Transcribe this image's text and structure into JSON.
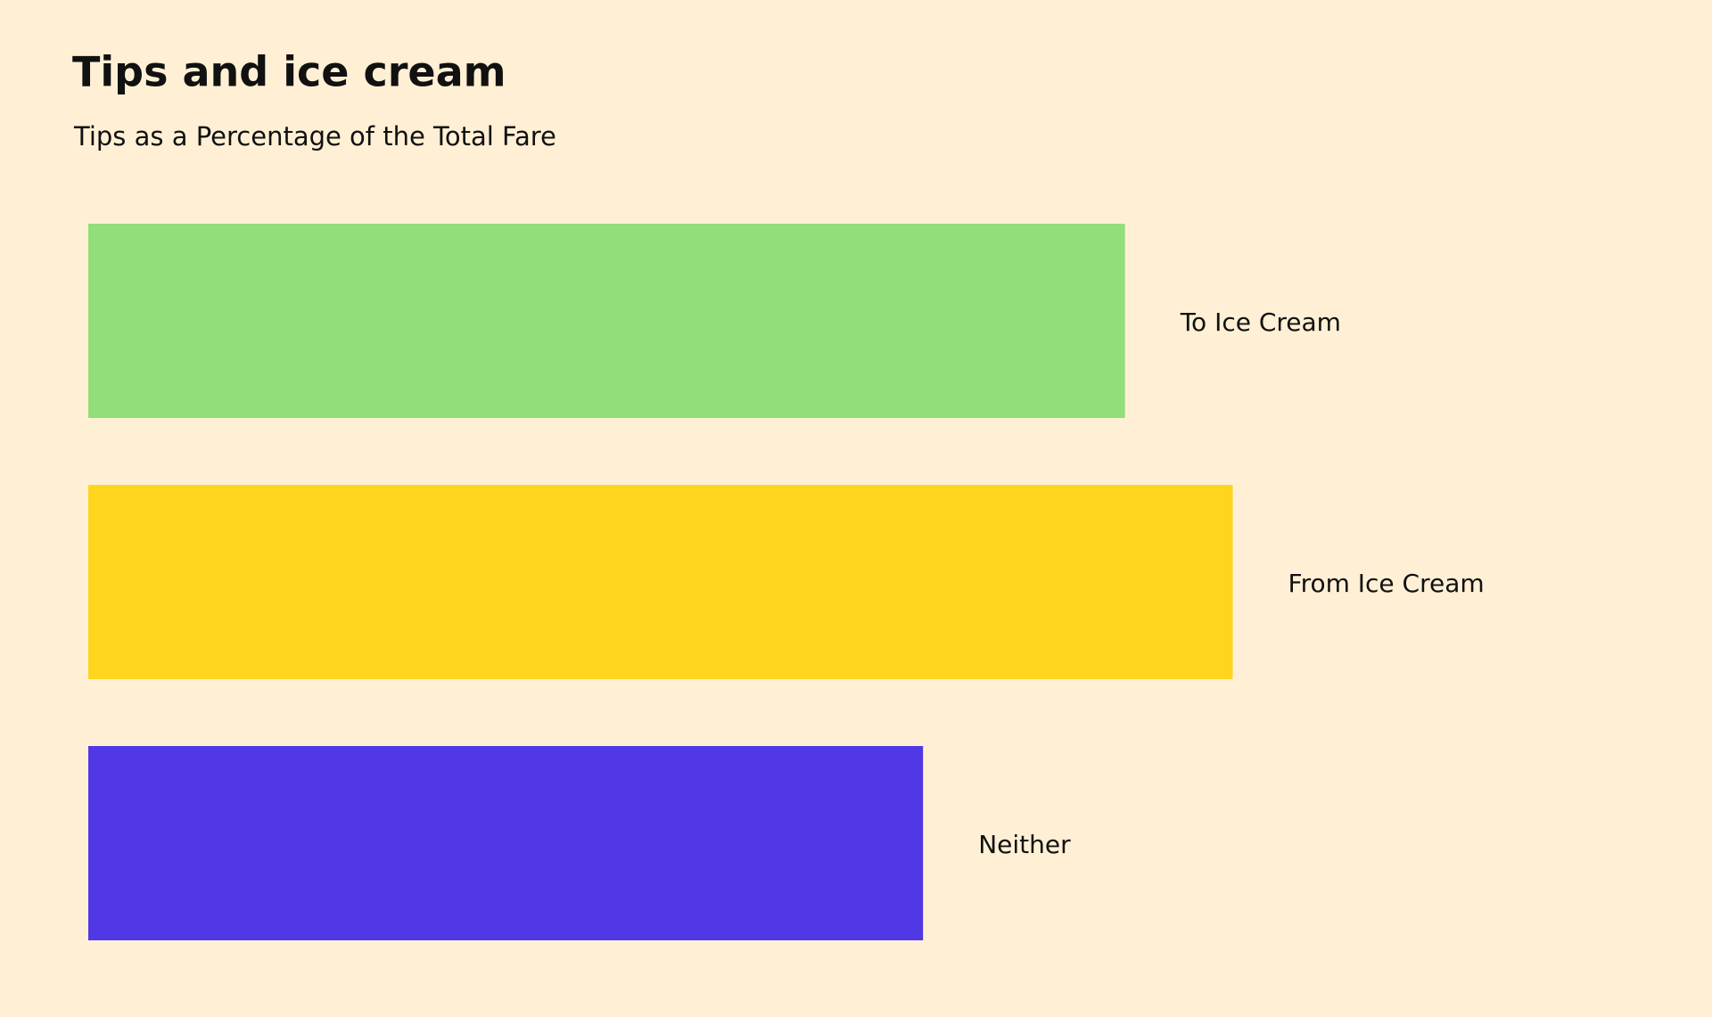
{
  "chart_data": {
    "type": "bar",
    "orientation": "horizontal",
    "title": "Tips and ice cream",
    "subtitle": "Tips as a Percentage of the Total Fare",
    "categories": [
      "To Ice Cream",
      "From Ice Cream",
      "Neither"
    ],
    "values": [
      15.4,
      17.0,
      12.4
    ],
    "colors": [
      "#91de7a",
      "#ffd51e",
      "#5038e4"
    ],
    "xlim": [
      0,
      20
    ]
  }
}
